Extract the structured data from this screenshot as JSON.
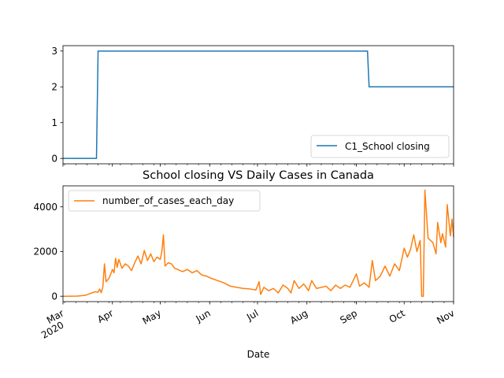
{
  "chart_data": [
    {
      "type": "line",
      "title": "",
      "xlabel": "",
      "ylabel": "",
      "ylim": [
        -0.15,
        3.15
      ],
      "yticks": [
        0,
        1,
        2,
        3
      ],
      "legend": "bottom-right",
      "grid": false,
      "series": [
        {
          "name": "C1_School closing",
          "color": "#1f77b4",
          "points": [
            [
              "2020-03-01",
              0
            ],
            [
              "2020-03-22",
              0
            ],
            [
              "2020-03-23",
              3
            ],
            [
              "2020-09-08",
              3
            ],
            [
              "2020-09-09",
              2
            ],
            [
              "2020-11-01",
              2
            ]
          ]
        }
      ]
    },
    {
      "type": "line",
      "title": "School closing VS Daily Cases in Canada",
      "xlabel": "Date",
      "ylabel": "",
      "ylim": [
        -240,
        4940
      ],
      "yticks": [
        0,
        2000,
        4000
      ],
      "legend": "top-left",
      "grid": false,
      "series": [
        {
          "name": "number_of_cases_each_day",
          "color": "#ff7f0e",
          "points": [
            [
              "2020-03-01",
              0
            ],
            [
              "2020-03-10",
              5
            ],
            [
              "2020-03-15",
              40
            ],
            [
              "2020-03-18",
              120
            ],
            [
              "2020-03-21",
              200
            ],
            [
              "2020-03-23",
              180
            ],
            [
              "2020-03-24",
              320
            ],
            [
              "2020-03-25",
              160
            ],
            [
              "2020-03-26",
              420
            ],
            [
              "2020-03-27",
              1450
            ],
            [
              "2020-03-28",
              650
            ],
            [
              "2020-03-30",
              820
            ],
            [
              "2020-04-01",
              1200
            ],
            [
              "2020-04-02",
              1050
            ],
            [
              "2020-04-03",
              1700
            ],
            [
              "2020-04-04",
              1300
            ],
            [
              "2020-04-05",
              1650
            ],
            [
              "2020-04-07",
              1250
            ],
            [
              "2020-04-09",
              1450
            ],
            [
              "2020-04-11",
              1350
            ],
            [
              "2020-04-13",
              1150
            ],
            [
              "2020-04-15",
              1500
            ],
            [
              "2020-04-17",
              1800
            ],
            [
              "2020-04-19",
              1450
            ],
            [
              "2020-04-21",
              2050
            ],
            [
              "2020-04-23",
              1600
            ],
            [
              "2020-04-25",
              1900
            ],
            [
              "2020-04-27",
              1550
            ],
            [
              "2020-04-29",
              1750
            ],
            [
              "2020-05-01",
              1650
            ],
            [
              "2020-05-02",
              2000
            ],
            [
              "2020-05-03",
              2750
            ],
            [
              "2020-05-04",
              1350
            ],
            [
              "2020-05-06",
              1500
            ],
            [
              "2020-05-08",
              1450
            ],
            [
              "2020-05-10",
              1250
            ],
            [
              "2020-05-12",
              1200
            ],
            [
              "2020-05-15",
              1100
            ],
            [
              "2020-05-18",
              1200
            ],
            [
              "2020-05-21",
              1050
            ],
            [
              "2020-05-24",
              1150
            ],
            [
              "2020-05-27",
              950
            ],
            [
              "2020-05-30",
              900
            ],
            [
              "2020-06-02",
              800
            ],
            [
              "2020-06-06",
              700
            ],
            [
              "2020-06-10",
              600
            ],
            [
              "2020-06-14",
              450
            ],
            [
              "2020-06-18",
              400
            ],
            [
              "2020-06-22",
              350
            ],
            [
              "2020-06-26",
              330
            ],
            [
              "2020-06-30",
              280
            ],
            [
              "2020-07-02",
              650
            ],
            [
              "2020-07-03",
              80
            ],
            [
              "2020-07-05",
              400
            ],
            [
              "2020-07-08",
              250
            ],
            [
              "2020-07-11",
              350
            ],
            [
              "2020-07-14",
              150
            ],
            [
              "2020-07-17",
              500
            ],
            [
              "2020-07-20",
              350
            ],
            [
              "2020-07-22",
              150
            ],
            [
              "2020-07-24",
              700
            ],
            [
              "2020-07-27",
              350
            ],
            [
              "2020-07-30",
              550
            ],
            [
              "2020-08-02",
              250
            ],
            [
              "2020-08-04",
              700
            ],
            [
              "2020-08-07",
              350
            ],
            [
              "2020-08-10",
              400
            ],
            [
              "2020-08-13",
              450
            ],
            [
              "2020-08-16",
              250
            ],
            [
              "2020-08-19",
              500
            ],
            [
              "2020-08-22",
              350
            ],
            [
              "2020-08-25",
              500
            ],
            [
              "2020-08-28",
              400
            ],
            [
              "2020-09-01",
              1000
            ],
            [
              "2020-09-03",
              450
            ],
            [
              "2020-09-06",
              600
            ],
            [
              "2020-09-09",
              400
            ],
            [
              "2020-09-11",
              1600
            ],
            [
              "2020-09-13",
              700
            ],
            [
              "2020-09-16",
              900
            ],
            [
              "2020-09-19",
              1350
            ],
            [
              "2020-09-22",
              900
            ],
            [
              "2020-09-25",
              1450
            ],
            [
              "2020-09-28",
              1150
            ],
            [
              "2020-10-01",
              2150
            ],
            [
              "2020-10-03",
              1750
            ],
            [
              "2020-10-05",
              2100
            ],
            [
              "2020-10-07",
              2750
            ],
            [
              "2020-10-09",
              2000
            ],
            [
              "2020-10-11",
              2500
            ],
            [
              "2020-10-12",
              0
            ],
            [
              "2020-10-13",
              0
            ],
            [
              "2020-10-14",
              4750
            ],
            [
              "2020-10-16",
              2600
            ],
            [
              "2020-10-19",
              2400
            ],
            [
              "2020-10-21",
              1900
            ],
            [
              "2020-10-22",
              3300
            ],
            [
              "2020-10-24",
              2400
            ],
            [
              "2020-10-25",
              2800
            ],
            [
              "2020-10-27",
              2200
            ],
            [
              "2020-10-28",
              4100
            ],
            [
              "2020-10-30",
              2700
            ],
            [
              "2020-10-31",
              3450
            ],
            [
              "2020-11-01",
              2650
            ]
          ]
        }
      ]
    }
  ],
  "x_axis": {
    "range": [
      "2020-03-01",
      "2020-11-01"
    ],
    "ticks": [
      {
        "date": "2020-03-01",
        "label": "Mar",
        "sub": "2020"
      },
      {
        "date": "2020-04-01",
        "label": "Apr",
        "sub": ""
      },
      {
        "date": "2020-05-01",
        "label": "May",
        "sub": ""
      },
      {
        "date": "2020-06-01",
        "label": "Jun",
        "sub": ""
      },
      {
        "date": "2020-07-01",
        "label": "Jul",
        "sub": ""
      },
      {
        "date": "2020-08-01",
        "label": "Aug",
        "sub": ""
      },
      {
        "date": "2020-09-01",
        "label": "Sep",
        "sub": ""
      },
      {
        "date": "2020-10-01",
        "label": "Oct",
        "sub": ""
      },
      {
        "date": "2020-11-01",
        "label": "Nov",
        "sub": ""
      }
    ]
  }
}
